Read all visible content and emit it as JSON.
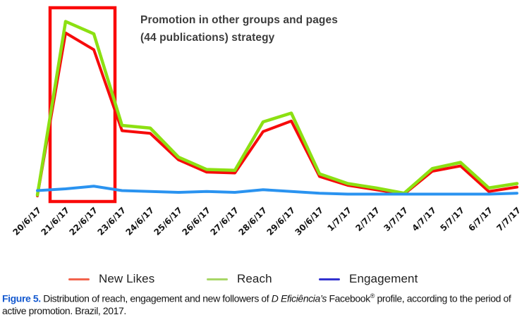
{
  "annotation": {
    "line1": "Promotion in other groups and pages",
    "line2": "(44 publications) strategy"
  },
  "chart_data": {
    "type": "line",
    "title": "",
    "xlabel": "",
    "ylabel": "",
    "y_axis_visible": false,
    "grid": false,
    "legend_position": "bottom",
    "ylim": [
      0,
      105
    ],
    "categories": [
      "20/6/17",
      "21/6/17",
      "22/6/17",
      "23/6/17",
      "24/6/17",
      "25/6/17",
      "26/6/17",
      "27/6/17",
      "28/6/17",
      "29/6/17",
      "30/6/17",
      "1/7/17",
      "2/7/17",
      "3/7/17",
      "4/7/17",
      "5/7/17",
      "6/7/17",
      "7/7/17"
    ],
    "series": [
      {
        "name": "New Likes",
        "color": "#f60b0b",
        "legend_color": "#f2634c",
        "values": [
          0,
          92.5,
          83,
          37,
          35.5,
          20.5,
          13.5,
          13,
          36.5,
          42.5,
          11,
          6,
          3.5,
          1,
          14,
          17,
          2.5,
          5
        ]
      },
      {
        "name": "Reach",
        "color": "#8ce012",
        "legend_color": "#a8d767",
        "values": [
          0.5,
          99,
          92,
          40,
          38.5,
          22,
          15,
          14.5,
          42,
          47,
          12.5,
          7,
          4.5,
          1.5,
          15.5,
          19,
          4.5,
          7
        ]
      },
      {
        "name": "Engagement",
        "color": "#2a93f0",
        "legend_color": "#3232cf",
        "values": [
          3,
          4,
          5.5,
          3,
          2.5,
          2,
          2.5,
          2,
          3.5,
          2.5,
          1.5,
          1,
          1,
          1,
          1,
          1,
          1,
          1.5
        ]
      }
    ],
    "highlight": {
      "from": "21/6/17",
      "to": "22/6/17",
      "color": "#fa0a0a"
    }
  },
  "caption": {
    "label": "Figure 5.",
    "text_before_italic": " Distribution of reach, engagement and new followers of ",
    "italic_text": "D Eficiência’s",
    "text_after_italic": " Facebook",
    "registered_mark": "®",
    "text_end": " profile, according to the period of active promotion. Brazil, 2017."
  },
  "colors": {
    "axis_label": "#151515",
    "annotation_text": "#3c3c3c",
    "legend_text": "#212121",
    "figure_label": "#1459cf",
    "background": "#ffffff"
  }
}
